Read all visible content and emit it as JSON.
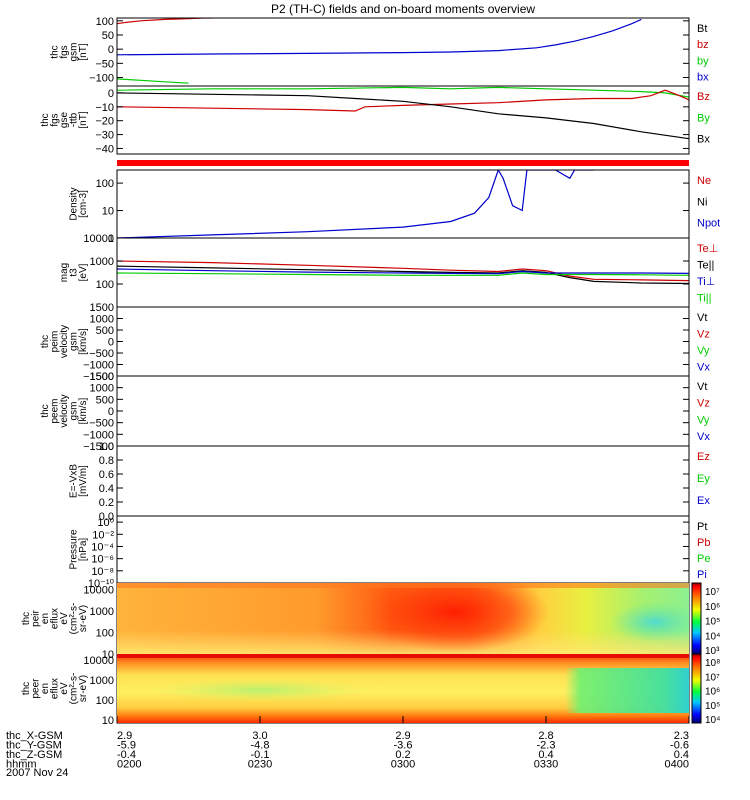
{
  "title": "P2 (TH-C) fields and on-board moments overview",
  "colors": {
    "black": "#000000",
    "red": "#cc0000",
    "green": "#00cc00",
    "blue": "#0000cc"
  },
  "time_axis": {
    "ticks": [
      "0200",
      "0230",
      "0300",
      "0330",
      "0400"
    ],
    "rows": [
      {
        "label": "thc_X-GSM",
        "values": [
          "2.9",
          "3.0",
          "2.9",
          "2.8",
          "2.3"
        ]
      },
      {
        "label": "thc_Y-GSM",
        "values": [
          "-5.9",
          "-4.8",
          "-3.6",
          "-2.3",
          "-0.6"
        ]
      },
      {
        "label": "thc_Z-GSM",
        "values": [
          "-0.4",
          "-0.1",
          "0.2",
          "0.4",
          "0.4"
        ]
      },
      {
        "label": "hhmm",
        "values": []
      }
    ],
    "date": "2007 Nov 24"
  },
  "chart_data": [
    {
      "id": "fgs_gsm",
      "type": "line",
      "ylabel": [
        "thc",
        "fgs",
        "gsm",
        "[nT]"
      ],
      "ylim": [
        -130,
        110
      ],
      "yticks": [
        100,
        50,
        0,
        -50,
        -100
      ],
      "yticklabels": [
        "100",
        "50",
        "0",
        "−50",
        "−100"
      ],
      "legend": [
        {
          "label": "Bt",
          "color": "#000000"
        },
        {
          "label": "bz",
          "color": "#cc0000"
        },
        {
          "label": "by",
          "color": "#00cc00"
        },
        {
          "label": "bx",
          "color": "#0000cc"
        }
      ],
      "series": [
        {
          "name": "bz",
          "color": "#cc0000",
          "x": [
            0,
            2,
            5,
            10,
            15,
            18,
            20
          ],
          "y": [
            90,
            95,
            100,
            105,
            108,
            110,
            110
          ]
        },
        {
          "name": "bx",
          "color": "#0000cc",
          "x": [
            0,
            20,
            40,
            60,
            70,
            80,
            88,
            92,
            96,
            100,
            104,
            108,
            110
          ],
          "y": [
            -20,
            -17,
            -15,
            -12,
            -10,
            -5,
            5,
            15,
            28,
            45,
            65,
            90,
            105
          ]
        },
        {
          "name": "by",
          "color": "#00cc00",
          "x": [
            0,
            5,
            10,
            15
          ],
          "y": [
            -105,
            -110,
            -115,
            -120
          ]
        }
      ]
    },
    {
      "id": "fgs_gse",
      "type": "line",
      "ylabel": [
        "thc",
        "fgs",
        "gse",
        "-ttb",
        "[nT]"
      ],
      "ylim": [
        -44,
        5
      ],
      "yticks": [
        0,
        -10,
        -20,
        -30,
        -40
      ],
      "yticklabels": [
        "0",
        "−10",
        "−20",
        "−30",
        "−40"
      ],
      "legend": [
        {
          "label": "Bz",
          "color": "#cc0000"
        },
        {
          "label": "By",
          "color": "#00cc00"
        },
        {
          "label": "Bx",
          "color": "#000000"
        }
      ],
      "series": [
        {
          "name": "By",
          "color": "#00cc00",
          "x": [
            0,
            20,
            40,
            60,
            70,
            80,
            90,
            100,
            110,
            115,
            120
          ],
          "y": [
            2,
            3,
            3,
            4,
            3,
            4,
            3,
            2,
            1,
            0,
            -3
          ]
        },
        {
          "name": "Bz",
          "color": "#cc0000",
          "x": [
            0,
            20,
            40,
            50,
            52,
            60,
            70,
            80,
            90,
            100,
            108,
            112,
            115,
            118,
            120
          ],
          "y": [
            -10,
            -11,
            -12,
            -13,
            -10,
            -9,
            -8,
            -7,
            -5,
            -4,
            -4,
            -2,
            2,
            -2,
            -5
          ]
        },
        {
          "name": "Bx",
          "color": "#000000",
          "x": [
            0,
            20,
            40,
            50,
            60,
            70,
            80,
            90,
            100,
            110,
            120
          ],
          "y": [
            0,
            -1,
            -2,
            -4,
            -6,
            -10,
            -15,
            -18,
            -22,
            -28,
            -33
          ]
        }
      ]
    },
    {
      "id": "density",
      "type": "line",
      "scale": "log",
      "ylabel": [
        "Density",
        "[cm-3]"
      ],
      "ylim": [
        1,
        300
      ],
      "yticks": [
        100,
        10,
        1
      ],
      "yticklabels": [
        "100",
        "10",
        "1"
      ],
      "legend": [
        {
          "label": "Ne",
          "color": "#cc0000"
        },
        {
          "label": "Ni",
          "color": "#000000"
        },
        {
          "label": "Npot",
          "color": "#0000cc"
        }
      ],
      "series": [
        {
          "name": "Npot",
          "color": "#0000cc",
          "x": [
            0,
            20,
            40,
            60,
            70,
            75,
            78,
            80,
            81,
            83,
            85,
            86,
            88,
            90,
            92,
            95,
            96,
            100
          ],
          "y": [
            1,
            1.3,
            1.7,
            2.5,
            4,
            8,
            30,
            300,
            150,
            15,
            10,
            300,
            300,
            300,
            300,
            150,
            300,
            300
          ]
        }
      ]
    },
    {
      "id": "mag_temp",
      "type": "line",
      "scale": "log",
      "ylabel": [
        "mag",
        "t3",
        "[eV]"
      ],
      "ylim": [
        10,
        10000
      ],
      "yticks": [
        10000,
        1000,
        100
      ],
      "yticklabels": [
        "10000",
        "1000",
        "100"
      ],
      "legend": [
        {
          "label": "Te⊥",
          "color": "#cc0000"
        },
        {
          "label": "Te||",
          "color": "#000000"
        },
        {
          "label": "Ti⊥",
          "color": "#0000cc"
        },
        {
          "label": "Ti||",
          "color": "#00cc00"
        }
      ],
      "series": [
        {
          "name": "Te⊥",
          "color": "#cc0000",
          "x": [
            0,
            20,
            40,
            60,
            70,
            80,
            85,
            90,
            95,
            100,
            110,
            120
          ],
          "y": [
            1000,
            850,
            650,
            480,
            400,
            350,
            450,
            380,
            220,
            160,
            150,
            140
          ]
        },
        {
          "name": "Te||",
          "color": "#000000",
          "x": [
            0,
            20,
            40,
            60,
            70,
            80,
            85,
            90,
            95,
            100,
            110,
            120
          ],
          "y": [
            600,
            500,
            420,
            350,
            320,
            300,
            380,
            320,
            190,
            130,
            110,
            105
          ]
        },
        {
          "name": "Ti⊥",
          "color": "#0000cc",
          "x": [
            0,
            20,
            40,
            60,
            70,
            80,
            85,
            90,
            100,
            110,
            120
          ],
          "y": [
            450,
            380,
            330,
            300,
            290,
            280,
            350,
            300,
            300,
            300,
            290
          ]
        },
        {
          "name": "Ti||",
          "color": "#00cc00",
          "x": [
            0,
            20,
            40,
            60,
            70,
            80,
            85,
            90,
            100,
            110,
            120
          ],
          "y": [
            300,
            280,
            260,
            240,
            240,
            240,
            300,
            260,
            260,
            250,
            240
          ]
        }
      ]
    },
    {
      "id": "peim_vel",
      "type": "line",
      "ylabel": [
        "thc",
        "peim",
        "velocity",
        "gsm",
        "[km/s]"
      ],
      "ylim": [
        -1500,
        1500
      ],
      "yticks": [
        1500,
        1000,
        500,
        0,
        -500,
        -1000,
        -1500
      ],
      "yticklabels": [
        "1500",
        "1000",
        "500",
        "0",
        "−500",
        "−1000",
        "−1500"
      ],
      "legend": [
        {
          "label": "Vt",
          "color": "#000000"
        },
        {
          "label": "Vz",
          "color": "#cc0000"
        },
        {
          "label": "Vy",
          "color": "#00cc00"
        },
        {
          "label": "Vx",
          "color": "#0000cc"
        }
      ],
      "series": []
    },
    {
      "id": "peem_vel",
      "type": "line",
      "ylabel": [
        "thc",
        "peem",
        "velocity",
        "gsm",
        "[km/s]"
      ],
      "ylim": [
        -1500,
        1500
      ],
      "yticks": [
        1500,
        1000,
        500,
        0,
        -500,
        -1000,
        -1500
      ],
      "yticklabels": [
        "1500",
        "1000",
        "500",
        "0",
        "−500",
        "−1000",
        "−1500"
      ],
      "legend": [
        {
          "label": "Vt",
          "color": "#000000"
        },
        {
          "label": "Vz",
          "color": "#cc0000"
        },
        {
          "label": "Vy",
          "color": "#00cc00"
        },
        {
          "label": "Vx",
          "color": "#0000cc"
        }
      ],
      "series": []
    },
    {
      "id": "efield",
      "type": "line",
      "ylabel": [
        "E=-VxB",
        "[mV/m]"
      ],
      "ylim": [
        0,
        1
      ],
      "yticks": [
        1,
        0.8,
        0.6,
        0.4,
        0.2,
        0
      ],
      "yticklabels": [
        "1.0",
        "0.8",
        "0.6",
        "0.4",
        "0.2",
        "0.0"
      ],
      "legend": [
        {
          "label": "Ez",
          "color": "#cc0000"
        },
        {
          "label": "Ey",
          "color": "#00cc00"
        },
        {
          "label": "Ex",
          "color": "#0000cc"
        }
      ],
      "series": []
    },
    {
      "id": "pressure",
      "type": "line",
      "scale": "log",
      "ylabel": [
        "Pressure",
        "[nPa]"
      ],
      "ylim": [
        1e-10,
        10
      ],
      "yticks": [
        1,
        0.01,
        0.0001,
        1e-06,
        1e-08,
        1e-10
      ],
      "yticklabels": [
        "10⁰",
        "10⁻²",
        "10⁻⁴",
        "10⁻⁶",
        "10⁻⁸",
        "10⁻¹⁰"
      ],
      "legend": [
        {
          "label": "Pt",
          "color": "#000000"
        },
        {
          "label": "Pb",
          "color": "#cc0000"
        },
        {
          "label": "Pe",
          "color": "#00cc00"
        },
        {
          "label": "Pi",
          "color": "#0000cc"
        }
      ],
      "series": []
    },
    {
      "id": "peir_spec",
      "type": "heatmap",
      "ylabel": [
        "thc",
        "peir",
        "en",
        "eflux",
        "eV",
        "(cm²-s-",
        "sr-eV)"
      ],
      "ylim": [
        10,
        20000
      ],
      "yticks": [
        10000,
        1000,
        100,
        10
      ],
      "yticklabels": [
        "10000",
        "1000",
        "100",
        "10"
      ],
      "colorbar": {
        "ticks": [
          "10⁷",
          "10⁶",
          "10⁵",
          "10⁴",
          "10³"
        ]
      },
      "description_values": "ion energy flux; hot red core near 0300-0320, green/cyan at high energy after 0335"
    },
    {
      "id": "peer_spec",
      "type": "heatmap",
      "ylabel": [
        "thc",
        "peer",
        "en",
        "eflux",
        "eV",
        "(cm²-s-",
        "sr-eV)"
      ],
      "ylim": [
        7,
        20000
      ],
      "yticks": [
        10000,
        1000,
        100,
        10
      ],
      "yticklabels": [
        "10000",
        "1000",
        "100",
        "10"
      ],
      "colorbar": {
        "ticks": [
          "10⁸",
          "10⁷",
          "10⁶",
          "10⁵",
          "10⁴"
        ]
      },
      "description_values": "electron energy flux; red low energy band, yellow/orange mid, green after 0330"
    }
  ]
}
